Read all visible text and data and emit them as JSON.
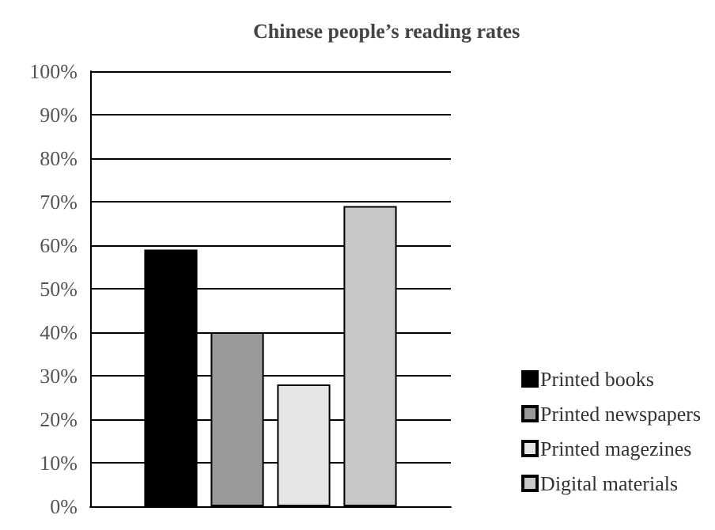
{
  "chart_data": {
    "type": "bar",
    "title": "Chinese people’s reading rates",
    "categories": [
      null
    ],
    "series": [
      {
        "name": "Printed books",
        "color": "#000000",
        "values": [
          59
        ]
      },
      {
        "name": "Printed newspapers",
        "color": "#999999",
        "values": [
          40
        ]
      },
      {
        "name": "Printed magezines",
        "color": "#e6e6e6",
        "values": [
          28
        ]
      },
      {
        "name": "Digital materials",
        "color": "#c8c8c8",
        "values": [
          69
        ]
      }
    ],
    "ylim": [
      0,
      100
    ],
    "yticks": [
      {
        "value": 0,
        "label": "0%"
      },
      {
        "value": 10,
        "label": "10%"
      },
      {
        "value": 20,
        "label": "20%"
      },
      {
        "value": 30,
        "label": "30%"
      },
      {
        "value": 40,
        "label": "40%"
      },
      {
        "value": 50,
        "label": "50%"
      },
      {
        "value": 60,
        "label": "60%"
      },
      {
        "value": 70,
        "label": "70%"
      },
      {
        "value": 80,
        "label": "80%"
      },
      {
        "value": 90,
        "label": "90%"
      },
      {
        "value": 100,
        "label": "100%"
      }
    ],
    "grid": "y",
    "legend": "right"
  }
}
